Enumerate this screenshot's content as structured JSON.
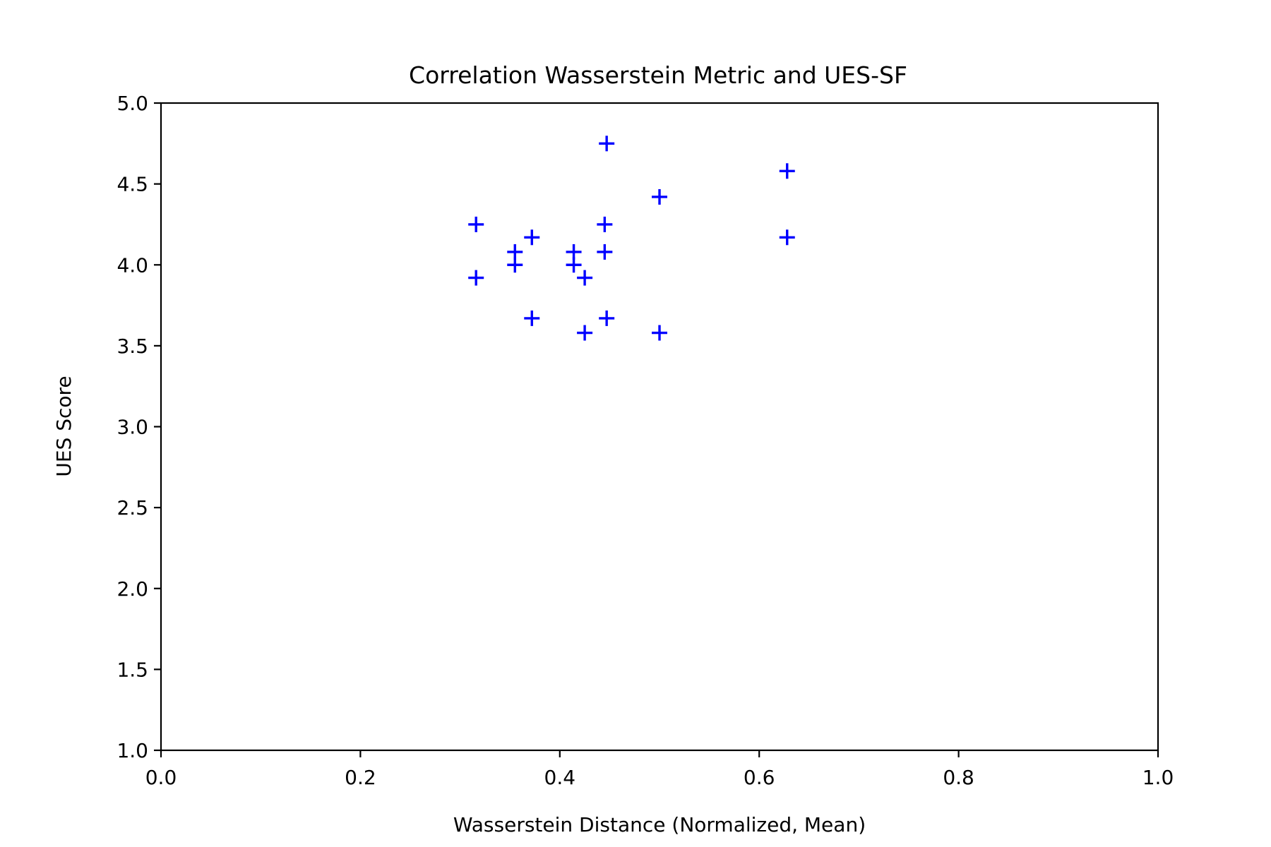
{
  "chart_data": {
    "type": "scatter",
    "title": "Correlation Wasserstein Metric and UES-SF",
    "xlabel": "Wasserstein Distance (Normalized, Mean)",
    "ylabel": "UES Score",
    "xlim": [
      0.0,
      1.0
    ],
    "ylim": [
      1.0,
      5.0
    ],
    "xticks": [
      "0.0",
      "0.2",
      "0.4",
      "0.6",
      "0.8",
      "1.0"
    ],
    "yticks": [
      "1.0",
      "1.5",
      "2.0",
      "2.5",
      "3.0",
      "3.5",
      "4.0",
      "4.5",
      "5.0"
    ],
    "grid": false,
    "marker": "plus",
    "marker_color": "#0000ff",
    "series": [
      {
        "x": [
          0.316,
          0.316,
          0.355,
          0.355,
          0.372,
          0.372,
          0.414,
          0.414,
          0.425,
          0.425,
          0.445,
          0.445,
          0.447,
          0.447,
          0.5,
          0.5,
          0.628,
          0.628
        ],
        "y": [
          4.25,
          3.92,
          4.08,
          4.0,
          4.17,
          3.67,
          4.08,
          4.0,
          3.92,
          3.58,
          4.25,
          4.08,
          4.75,
          3.67,
          4.42,
          3.58,
          4.58,
          4.17
        ]
      }
    ]
  }
}
